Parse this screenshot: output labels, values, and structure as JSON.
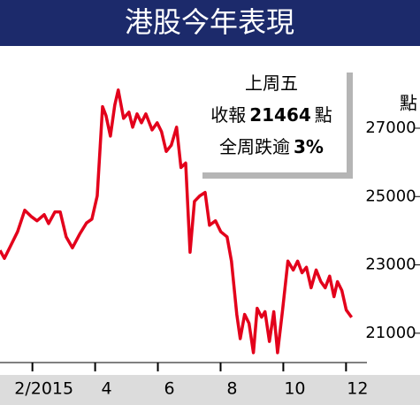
{
  "chart_data": {
    "type": "line",
    "title": "港股今年表現",
    "y_label": "點",
    "annotation": [
      [
        "上周五"
      ],
      [
        "收報",
        "21464",
        "點"
      ],
      [
        "全周跌逾",
        "3%"
      ]
    ],
    "x": [
      0.6,
      0.74,
      0.94,
      1.16,
      1.39,
      1.59,
      1.78,
      2.01,
      2.15,
      2.35,
      2.52,
      2.71,
      2.91,
      3.14,
      3.36,
      3.53,
      3.7,
      3.87,
      3.98,
      4.12,
      4.26,
      4.37,
      4.54,
      4.71,
      4.83,
      4.97,
      5.11,
      5.25,
      5.45,
      5.61,
      5.75,
      5.9,
      6.06,
      6.23,
      6.37,
      6.52,
      6.66,
      6.8,
      6.97,
      7.14,
      7.28,
      7.47,
      7.64,
      7.84,
      7.98,
      8.15,
      8.26,
      8.4,
      8.54,
      8.68,
      8.8,
      8.94,
      9.05,
      9.19,
      9.33,
      9.45,
      9.61,
      9.78,
      9.95,
      10.09,
      10.23,
      10.37,
      10.52,
      10.68,
      10.83,
      10.97,
      11.11,
      11.25,
      11.36,
      11.5,
      11.64,
      11.81
    ],
    "series": [
      {
        "color": "#e3001b",
        "values": [
          23426,
          23190,
          23560,
          23970,
          24600,
          24420,
          24290,
          24470,
          24210,
          24550,
          24550,
          23820,
          23500,
          23900,
          24230,
          24340,
          25020,
          27630,
          27370,
          26770,
          27680,
          28120,
          27290,
          27470,
          27030,
          27420,
          27160,
          27420,
          26950,
          27160,
          26900,
          26320,
          26500,
          27030,
          25850,
          25980,
          23370,
          24860,
          25020,
          25120,
          24160,
          24290,
          23970,
          23820,
          23110,
          21550,
          20840,
          21550,
          21290,
          20430,
          21730,
          21470,
          21630,
          20760,
          21630,
          20430,
          21680,
          23110,
          22850,
          23110,
          22770,
          22930,
          22330,
          22850,
          22510,
          22330,
          22670,
          22070,
          22510,
          22250,
          21680,
          21464
        ]
      }
    ],
    "xlim": [
      0.6,
      12.3
    ],
    "ylim": [
      20400,
      29200
    ],
    "xticks": [
      {
        "value": 2,
        "label": "2/2015"
      },
      4,
      6,
      8,
      10,
      12
    ],
    "yticks": [
      21000,
      23000,
      25000,
      27000
    ]
  }
}
